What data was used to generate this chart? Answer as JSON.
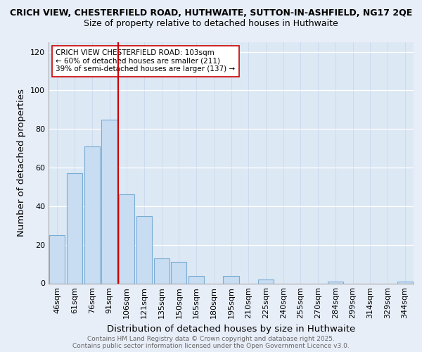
{
  "title_line1": "CRICH VIEW, CHESTERFIELD ROAD, HUTHWAITE, SUTTON-IN-ASHFIELD, NG17 2QE",
  "title_line2": "Size of property relative to detached houses in Huthwaite",
  "xlabel": "Distribution of detached houses by size in Huthwaite",
  "ylabel": "Number of detached properties",
  "categories": [
    "46sqm",
    "61sqm",
    "76sqm",
    "91sqm",
    "106sqm",
    "121sqm",
    "135sqm",
    "150sqm",
    "165sqm",
    "180sqm",
    "195sqm",
    "210sqm",
    "225sqm",
    "240sqm",
    "255sqm",
    "270sqm",
    "284sqm",
    "299sqm",
    "314sqm",
    "329sqm",
    "344sqm"
  ],
  "values": [
    25,
    57,
    71,
    85,
    46,
    35,
    13,
    11,
    4,
    0,
    4,
    0,
    2,
    0,
    0,
    0,
    1,
    0,
    0,
    0,
    1
  ],
  "bar_color": "#c8ddf2",
  "bar_edge_color": "#7aadd4",
  "vline_color": "#cc0000",
  "vline_x_index": 3.5,
  "annotation_box_text": "CRICH VIEW CHESTERFIELD ROAD: 103sqm\n← 60% of detached houses are smaller (211)\n39% of semi-detached houses are larger (137) →",
  "ylim": [
    0,
    125
  ],
  "yticks": [
    0,
    20,
    40,
    60,
    80,
    100,
    120
  ],
  "background_color": "#e8eef8",
  "plot_bg_color": "#dde8f5",
  "footer_line1": "Contains HM Land Registry data © Crown copyright and database right 2025.",
  "footer_line2": "Contains public sector information licensed under the Open Government Licence v3.0.",
  "title_fontsize": 9.0,
  "axis_label_fontsize": 9.5,
  "tick_fontsize": 8.0,
  "annotation_fontsize": 7.5,
  "footer_fontsize": 6.5
}
